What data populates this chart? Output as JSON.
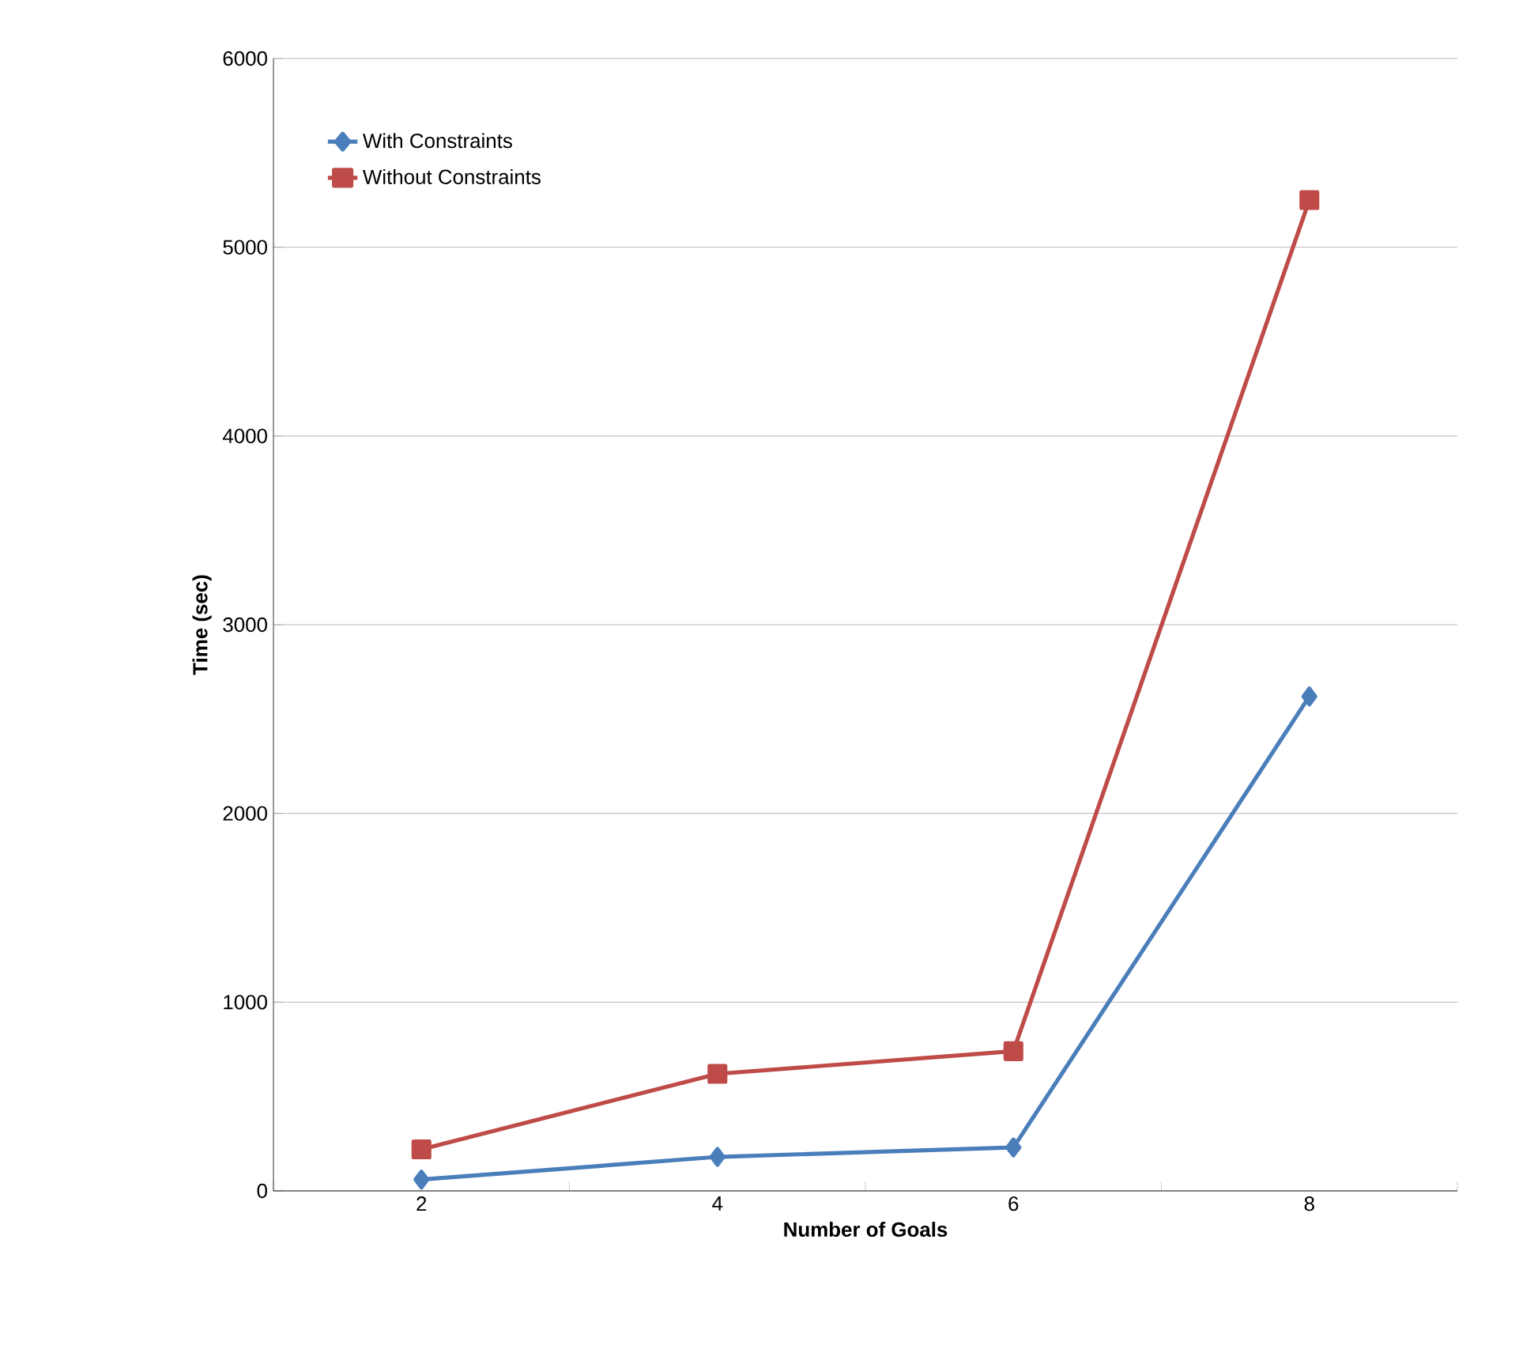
{
  "chart_data": {
    "type": "line",
    "xlabel": "Number of Goals",
    "ylabel": "Time (sec)",
    "categories": [
      "2",
      "4",
      "6",
      "8"
    ],
    "series": [
      {
        "name": "With Constraints",
        "color": "#4a7ebb",
        "marker": "diamond",
        "values": [
          60,
          180,
          230,
          2620
        ]
      },
      {
        "name": "Without Constraints",
        "color": "#be4b48",
        "marker": "square",
        "values": [
          220,
          620,
          740,
          5250
        ]
      }
    ],
    "ylim": [
      0,
      6000
    ],
    "yticks": [
      0,
      1000,
      2000,
      3000,
      4000,
      5000,
      6000
    ],
    "grid": "y",
    "legend": "top left"
  }
}
